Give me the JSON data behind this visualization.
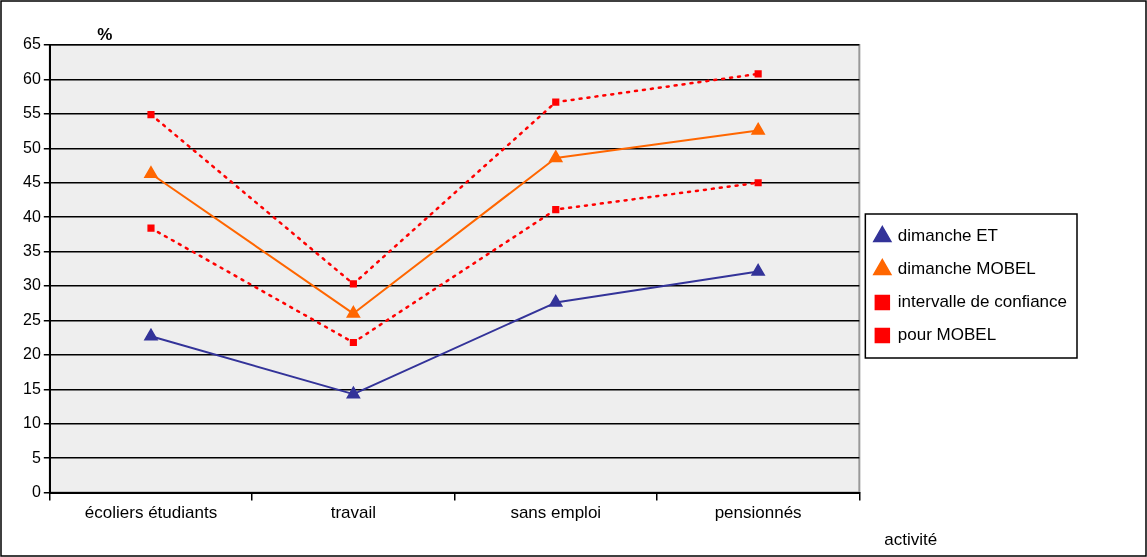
{
  "chart_data": {
    "type": "line",
    "ylabel": "%",
    "xlabel": "activité",
    "categories": [
      "écoliers étudiants",
      "travail",
      "sans emploi",
      "pensionnés"
    ],
    "series": [
      {
        "name": "dimanche ET",
        "color": "#333399",
        "marker": "triangle",
        "line_style": "solid",
        "values": [
          22.7,
          14.3,
          27.6,
          32.1
        ]
      },
      {
        "name": "dimanche MOBEL",
        "color": "#ff6600",
        "marker": "triangle",
        "line_style": "solid",
        "values": [
          46.3,
          26.0,
          48.6,
          52.6
        ]
      },
      {
        "name": "intervalle de confiance",
        "color": "#ff0000",
        "marker": "square",
        "line_style": "dotted",
        "values": [
          54.9,
          30.3,
          56.7,
          60.8
        ]
      },
      {
        "name": "pour MOBEL",
        "color": "#ff0000",
        "marker": "square",
        "line_style": "dotted",
        "values": [
          38.4,
          21.8,
          41.1,
          45.0
        ]
      }
    ],
    "ylim": [
      0,
      65
    ],
    "yticks": [
      0,
      5,
      10,
      15,
      20,
      25,
      30,
      35,
      40,
      45,
      50,
      55,
      60,
      65
    ],
    "grid": "y",
    "legend": "right"
  }
}
